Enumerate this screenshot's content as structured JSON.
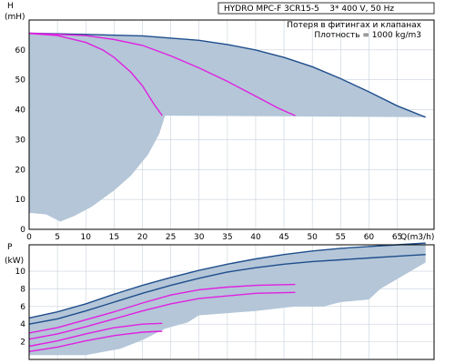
{
  "chart_data": [
    {
      "type": "area",
      "product_title": "HYDRO MPC-F 3CR15-5    3* 400 V, 50 Hz",
      "notes": [
        "Потеря в фитингах и клапанах",
        "Плотность = 1000 kg/m3"
      ],
      "ylabel": "H",
      "yunit": "(mH)",
      "xlabel": "Q(m3/h)",
      "xlim": [
        0,
        71.5
      ],
      "ylim": [
        0,
        70
      ],
      "xticks": [
        0,
        5,
        10,
        15,
        20,
        25,
        30,
        35,
        40,
        45,
        50,
        55,
        60,
        65
      ],
      "yticks": [
        0,
        10,
        20,
        30,
        40,
        50,
        60
      ],
      "grid": true,
      "envelope_upper": [
        [
          0,
          65.6
        ],
        [
          10,
          65.2
        ],
        [
          20,
          64.7
        ],
        [
          30,
          63.2
        ],
        [
          35,
          61.8
        ],
        [
          40,
          60
        ],
        [
          45,
          57.5
        ],
        [
          50,
          54.4
        ],
        [
          55,
          50.4
        ],
        [
          60,
          46
        ],
        [
          65,
          41.3
        ],
        [
          70,
          37.5
        ]
      ],
      "envelope_lower": [
        [
          0,
          5.5
        ],
        [
          3,
          5
        ],
        [
          5.5,
          2.6
        ],
        [
          8,
          4.5
        ],
        [
          11,
          7.5
        ],
        [
          15,
          13
        ],
        [
          18,
          18
        ],
        [
          21,
          25
        ],
        [
          23,
          32
        ],
        [
          24,
          38
        ],
        [
          70,
          37.5
        ]
      ],
      "series": [
        {
          "color": "#1f4e8c",
          "points": [
            [
              0,
              65.6
            ],
            [
              10,
              65.2
            ],
            [
              20,
              64.7
            ],
            [
              30,
              63.2
            ],
            [
              35,
              61.8
            ],
            [
              40,
              60
            ],
            [
              45,
              57.5
            ],
            [
              50,
              54.4
            ],
            [
              55,
              50.4
            ],
            [
              60,
              46
            ],
            [
              65,
              41.3
            ],
            [
              70,
              37.5
            ]
          ]
        },
        {
          "color": "#e020e0",
          "points": [
            [
              0,
              65.5
            ],
            [
              5,
              64.8
            ],
            [
              10,
              62.5
            ],
            [
              13,
              60
            ],
            [
              15,
              57.5
            ],
            [
              18,
              52.5
            ],
            [
              20,
              48
            ],
            [
              22,
              42
            ],
            [
              23.5,
              38
            ]
          ]
        },
        {
          "color": "#e020e0",
          "points": [
            [
              0,
              65.6
            ],
            [
              10,
              64.8
            ],
            [
              15,
              63.5
            ],
            [
              20,
              61.5
            ],
            [
              25,
              58
            ],
            [
              30,
              54
            ],
            [
              35,
              49.5
            ],
            [
              40,
              44.5
            ],
            [
              44,
              40.5
            ],
            [
              47,
              38
            ]
          ]
        }
      ]
    },
    {
      "type": "area",
      "ylabel": "P",
      "yunit": "(kW)",
      "xlim": [
        0,
        71.5
      ],
      "ylim": [
        0,
        13
      ],
      "xticks": [
        0,
        5,
        10,
        15,
        20,
        25,
        30,
        35,
        40,
        45,
        50,
        55,
        60,
        65
      ],
      "yticks": [
        2,
        4,
        6,
        8,
        10
      ],
      "grid": true,
      "envelope_upper": [
        [
          0,
          4.7
        ],
        [
          5,
          5.4
        ],
        [
          10,
          6.3
        ],
        [
          15,
          7.4
        ],
        [
          20,
          8.4
        ],
        [
          25,
          9.3
        ],
        [
          30,
          10.1
        ],
        [
          35,
          10.8
        ],
        [
          40,
          11.4
        ],
        [
          45,
          11.9
        ],
        [
          50,
          12.3
        ],
        [
          55,
          12.6
        ],
        [
          60,
          12.8
        ],
        [
          65,
          13
        ],
        [
          70,
          13.2
        ]
      ],
      "envelope_lower": [
        [
          0,
          0.5
        ],
        [
          10,
          0.5
        ],
        [
          16,
          1.2
        ],
        [
          20,
          2.2
        ],
        [
          24,
          3.5
        ],
        [
          28,
          4.2
        ],
        [
          30,
          5
        ],
        [
          40,
          5.5
        ],
        [
          47,
          6
        ],
        [
          52,
          6
        ],
        [
          55,
          6.5
        ],
        [
          60,
          6.8
        ],
        [
          62,
          8
        ],
        [
          70,
          11
        ]
      ],
      "series": [
        {
          "color": "#1f4e8c",
          "points": [
            [
              0,
              4.7
            ],
            [
              5,
              5.4
            ],
            [
              10,
              6.3
            ],
            [
              15,
              7.4
            ],
            [
              20,
              8.4
            ],
            [
              25,
              9.3
            ],
            [
              30,
              10.1
            ],
            [
              35,
              10.8
            ],
            [
              40,
              11.4
            ],
            [
              45,
              11.9
            ],
            [
              50,
              12.3
            ],
            [
              55,
              12.6
            ],
            [
              60,
              12.8
            ],
            [
              65,
              13
            ],
            [
              70,
              13.2
            ]
          ]
        },
        {
          "color": "#1f4e8c",
          "points": [
            [
              0,
              4
            ],
            [
              5,
              4.6
            ],
            [
              10,
              5.5
            ],
            [
              15,
              6.5
            ],
            [
              20,
              7.5
            ],
            [
              25,
              8.4
            ],
            [
              30,
              9.2
            ],
            [
              35,
              9.9
            ],
            [
              40,
              10.4
            ],
            [
              45,
              10.8
            ],
            [
              50,
              11.1
            ],
            [
              55,
              11.3
            ],
            [
              60,
              11.5
            ],
            [
              65,
              11.7
            ],
            [
              70,
              11.9
            ]
          ]
        },
        {
          "color": "#e020e0",
          "points": [
            [
              0,
              3
            ],
            [
              5,
              3.6
            ],
            [
              10,
              4.5
            ],
            [
              15,
              5.4
            ],
            [
              20,
              6.4
            ],
            [
              25,
              7.3
            ],
            [
              30,
              7.9
            ],
            [
              35,
              8.2
            ],
            [
              40,
              8.4
            ],
            [
              47,
              8.5
            ]
          ]
        },
        {
          "color": "#e020e0",
          "points": [
            [
              0,
              2.3
            ],
            [
              5,
              2.9
            ],
            [
              10,
              3.7
            ],
            [
              15,
              4.6
            ],
            [
              20,
              5.5
            ],
            [
              25,
              6.3
            ],
            [
              30,
              6.9
            ],
            [
              35,
              7.2
            ],
            [
              40,
              7.5
            ],
            [
              47,
              7.6
            ]
          ]
        },
        {
          "color": "#e020e0",
          "points": [
            [
              0,
              1.5
            ],
            [
              5,
              2.1
            ],
            [
              10,
              2.9
            ],
            [
              15,
              3.6
            ],
            [
              20,
              4
            ],
            [
              23.5,
              4.1
            ]
          ]
        },
        {
          "color": "#e020e0",
          "points": [
            [
              0,
              0.9
            ],
            [
              5,
              1.4
            ],
            [
              10,
              2.1
            ],
            [
              15,
              2.7
            ],
            [
              20,
              3.1
            ],
            [
              23.5,
              3.2
            ]
          ]
        }
      ]
    }
  ],
  "colors": {
    "envelope_fill": "#b4c6d8",
    "grid": "#c8d2dc",
    "frame": "#000000"
  }
}
